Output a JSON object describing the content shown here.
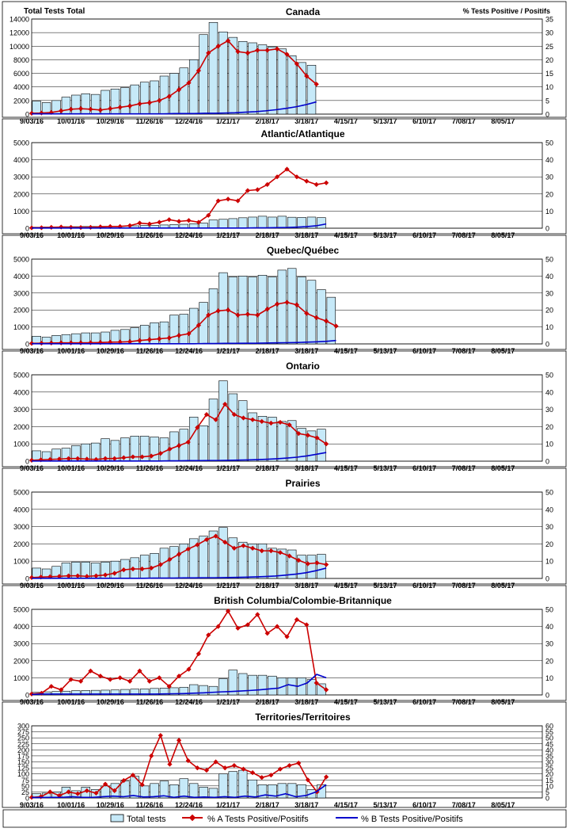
{
  "header": {
    "left_axis_title": "Total Tests Total",
    "right_axis_title": "% Tests Positive / Positifs"
  },
  "x_tick_labels": [
    "9/03/16",
    "10/01/16",
    "10/29/16",
    "11/26/16",
    "12/24/16",
    "1/21/17",
    "2/18/17",
    "3/18/17",
    "4/15/17",
    "5/13/17",
    "6/10/17",
    "7/08/17",
    "8/05/17"
  ],
  "legend": {
    "total": "Total tests",
    "pct_a": "% A Tests Positive/Positifs",
    "pct_b": "% B Tests Positive/Positifs"
  },
  "colors": {
    "bar_fill": "#c6e9f8",
    "bar_stroke": "#000000",
    "line_a": "#cc0000",
    "line_b": "#0000cc",
    "grid": "#000000"
  },
  "chart_data": [
    {
      "type": "bar",
      "title": "Canada",
      "ylim_left": [
        0,
        14000
      ],
      "yticks_left": [
        0,
        2000,
        4000,
        6000,
        8000,
        10000,
        12000,
        14000
      ],
      "ylim_right": [
        0,
        35
      ],
      "yticks_right": [
        0,
        5,
        10,
        15,
        20,
        25,
        30,
        35
      ],
      "x_weeks": 52,
      "series": [
        {
          "name": "Total tests",
          "values": [
            1900,
            1700,
            2000,
            2500,
            2800,
            3000,
            2900,
            3500,
            3700,
            3900,
            4300,
            4700,
            4900,
            5600,
            6000,
            6800,
            8000,
            11700,
            13500,
            12100,
            11300,
            10700,
            10500,
            10200,
            9900,
            9600,
            8600,
            7600,
            7200
          ]
        },
        {
          "name": "% A Tests Positive/Positifs",
          "values": [
            0.3,
            0.4,
            0.6,
            1.2,
            1.8,
            2.0,
            1.8,
            1.5,
            2.0,
            2.5,
            3.0,
            3.8,
            4.2,
            5.0,
            6.5,
            9.0,
            11.5,
            16.0,
            22.5,
            25.0,
            27.0,
            23.0,
            22.5,
            23.5,
            23.5,
            24.0,
            22.0,
            18.5,
            14.0,
            11.0
          ]
        },
        {
          "name": "% B Tests Positive/Positifs",
          "values": [
            0.1,
            0.1,
            0.1,
            0.1,
            0.1,
            0.1,
            0.1,
            0.1,
            0.1,
            0.1,
            0.1,
            0.1,
            0.1,
            0.1,
            0.2,
            0.2,
            0.2,
            0.3,
            0.3,
            0.4,
            0.5,
            0.7,
            0.9,
            1.2,
            1.6,
            2.1,
            2.7,
            3.5,
            4.5
          ]
        }
      ]
    },
    {
      "type": "bar",
      "title": "Atlantic/Atlantique",
      "ylim_left": [
        0,
        5000
      ],
      "yticks_left": [
        0,
        1000,
        2000,
        3000,
        4000,
        5000
      ],
      "ylim_right": [
        0,
        50
      ],
      "yticks_right": [
        0,
        10,
        20,
        30,
        40,
        50
      ],
      "x_weeks": 52,
      "series": [
        {
          "name": "Total tests",
          "values": [
            60,
            70,
            80,
            90,
            90,
            100,
            100,
            110,
            120,
            130,
            140,
            160,
            170,
            190,
            210,
            230,
            260,
            300,
            480,
            520,
            560,
            610,
            650,
            700,
            650,
            700,
            640,
            630,
            650,
            620
          ]
        },
        {
          "name": "% A Tests Positive/Positifs",
          "values": [
            0.2,
            0.3,
            0.5,
            0.7,
            0.5,
            0.4,
            0.5,
            0.8,
            1.0,
            1.0,
            1.5,
            3.0,
            2.5,
            3.5,
            5.0,
            4.0,
            4.5,
            3.5,
            7.5,
            16.0,
            17.0,
            16.0,
            22.0,
            22.5,
            25.5,
            30.0,
            34.5,
            30.0,
            27.5,
            25.5,
            26.5
          ]
        },
        {
          "name": "% B Tests Positive/Positifs",
          "values": [
            0.1,
            0.1,
            0.1,
            0.1,
            0.1,
            0.1,
            0.1,
            0.1,
            0.1,
            0.1,
            0.1,
            0.1,
            0.1,
            0.1,
            0.1,
            0.1,
            0.1,
            0.1,
            0.1,
            0.1,
            0.1,
            0.1,
            0.2,
            0.2,
            0.3,
            0.4,
            0.6,
            0.9,
            1.4,
            2.5
          ]
        }
      ]
    },
    {
      "type": "bar",
      "title": "Quebec/Québec",
      "ylim_left": [
        0,
        5000
      ],
      "yticks_left": [
        0,
        1000,
        2000,
        3000,
        4000,
        5000
      ],
      "ylim_right": [
        0,
        50
      ],
      "yticks_right": [
        0,
        10,
        20,
        30,
        40,
        50
      ],
      "x_weeks": 52,
      "series": [
        {
          "name": "Total tests",
          "values": [
            450,
            400,
            500,
            550,
            600,
            650,
            650,
            700,
            800,
            850,
            950,
            1100,
            1250,
            1300,
            1700,
            1750,
            2100,
            2450,
            3250,
            4200,
            3950,
            4000,
            3950,
            4050,
            3950,
            4350,
            4450,
            3950,
            3750,
            3200,
            2750
          ]
        },
        {
          "name": "% A Tests Positive/Positifs",
          "values": [
            0.3,
            0.4,
            0.5,
            0.6,
            0.6,
            0.6,
            0.7,
            0.8,
            1.0,
            1.1,
            1.3,
            2.0,
            2.5,
            3.0,
            3.5,
            5.0,
            6.0,
            11.0,
            17.0,
            19.5,
            20.0,
            17.0,
            17.5,
            17.0,
            20.5,
            23.5,
            24.5,
            23.0,
            18.0,
            15.5,
            13.5,
            10.5
          ]
        },
        {
          "name": "% B Tests Positive/Positifs",
          "values": [
            0.1,
            0.1,
            0.1,
            0.1,
            0.1,
            0.1,
            0.1,
            0.1,
            0.1,
            0.1,
            0.1,
            0.1,
            0.1,
            0.1,
            0.1,
            0.1,
            0.1,
            0.2,
            0.2,
            0.3,
            0.3,
            0.4,
            0.4,
            0.5,
            0.6,
            0.7,
            0.8,
            1.0,
            1.2,
            1.5,
            2.0
          ]
        }
      ]
    },
    {
      "type": "bar",
      "title": "Ontario",
      "ylim_left": [
        0,
        5000
      ],
      "yticks_left": [
        0,
        1000,
        2000,
        3000,
        4000,
        5000
      ],
      "ylim_right": [
        0,
        50
      ],
      "yticks_right": [
        0,
        10,
        20,
        30,
        40,
        50
      ],
      "x_weeks": 52,
      "series": [
        {
          "name": "Total tests",
          "values": [
            600,
            550,
            700,
            750,
            900,
            1000,
            1050,
            1300,
            1200,
            1350,
            1450,
            1450,
            1400,
            1350,
            1700,
            1850,
            2550,
            2050,
            3600,
            4650,
            3900,
            3500,
            2800,
            2600,
            2550,
            2300,
            2350,
            1900,
            1750,
            1850
          ]
        },
        {
          "name": "% A Tests Positive/Positifs",
          "values": [
            0.5,
            0.8,
            1.0,
            1.2,
            1.5,
            1.5,
            1.2,
            1.0,
            1.5,
            1.5,
            2.0,
            2.5,
            2.5,
            3.0,
            4.5,
            7.0,
            9.0,
            11.0,
            19.5,
            27.0,
            24.0,
            33.0,
            27.0,
            25.0,
            24.0,
            23.0,
            22.0,
            22.5,
            21.0,
            16.0,
            15.0,
            13.5,
            10.0
          ]
        },
        {
          "name": "% B Tests Positive/Positifs",
          "values": [
            0.1,
            0.1,
            0.1,
            0.1,
            0.1,
            0.1,
            0.1,
            0.1,
            0.1,
            0.1,
            0.1,
            0.1,
            0.1,
            0.1,
            0.2,
            0.2,
            0.3,
            0.3,
            0.4,
            0.4,
            0.5,
            0.6,
            0.7,
            0.9,
            1.1,
            1.4,
            1.8,
            2.3,
            3.0,
            4.0,
            5.0
          ]
        }
      ]
    },
    {
      "type": "bar",
      "title": "Prairies",
      "ylim_left": [
        0,
        5000
      ],
      "yticks_left": [
        0,
        1000,
        2000,
        3000,
        4000,
        5000
      ],
      "ylim_right": [
        0,
        50
      ],
      "yticks_right": [
        0,
        10,
        20,
        30,
        40,
        50
      ],
      "x_weeks": 52,
      "series": [
        {
          "name": "Total tests",
          "values": [
            600,
            550,
            700,
            900,
            950,
            950,
            900,
            950,
            1000,
            1100,
            1200,
            1350,
            1450,
            1750,
            1850,
            2000,
            2300,
            2450,
            2750,
            2950,
            2350,
            2100,
            2000,
            2000,
            1750,
            1700,
            1650,
            1350,
            1350,
            1400
          ]
        },
        {
          "name": "% A Tests Positive/Positifs",
          "values": [
            0.5,
            0.8,
            1.0,
            1.2,
            1.5,
            1.5,
            1.2,
            1.5,
            2.0,
            3.0,
            5.0,
            5.5,
            5.5,
            6.0,
            8.0,
            11.0,
            14.0,
            17.0,
            19.5,
            22.5,
            24.5,
            21.0,
            17.5,
            19.0,
            17.5,
            16.0,
            16.0,
            15.0,
            13.0,
            10.5,
            8.5,
            9.0,
            8.0
          ]
        },
        {
          "name": "% B Tests Positive/Positifs",
          "values": [
            0.1,
            0.1,
            0.1,
            0.1,
            0.1,
            0.1,
            0.1,
            0.1,
            0.1,
            0.1,
            0.1,
            0.1,
            0.2,
            0.2,
            0.2,
            0.3,
            0.3,
            0.4,
            0.4,
            0.5,
            0.6,
            0.7,
            0.9,
            1.1,
            1.4,
            1.9,
            2.5,
            3.3,
            4.5,
            6.0
          ]
        }
      ]
    },
    {
      "type": "bar",
      "title": "British Columbia/Colombie-Britannique",
      "ylim_left": [
        0,
        5000
      ],
      "yticks_left": [
        0,
        1000,
        2000,
        3000,
        4000,
        5000
      ],
      "ylim_right": [
        0,
        50
      ],
      "yticks_right": [
        0,
        10,
        20,
        30,
        40,
        50
      ],
      "x_weeks": 52,
      "series": [
        {
          "name": "Total tests",
          "values": [
            150,
            180,
            200,
            220,
            250,
            260,
            270,
            280,
            290,
            320,
            340,
            350,
            380,
            400,
            420,
            450,
            600,
            550,
            500,
            950,
            1450,
            1250,
            1150,
            1150,
            1100,
            1000,
            1000,
            1000,
            900,
            650
          ]
        },
        {
          "name": "% A Tests Positive/Positifs",
          "values": [
            0.5,
            1.0,
            5.0,
            3.0,
            9.0,
            8.0,
            14.0,
            11.0,
            9.0,
            10.0,
            8.0,
            14.0,
            8.0,
            10.0,
            5.0,
            11.0,
            15.0,
            24.0,
            35.0,
            40.0,
            49.0,
            39.0,
            41.0,
            47.0,
            36.0,
            40.0,
            34.0,
            44.0,
            41.0,
            7.0,
            3.0
          ]
        },
        {
          "name": "% B Tests Positive/Positifs",
          "values": [
            0.2,
            0.5,
            0.5,
            0.5,
            0.5,
            0.5,
            0.5,
            0.5,
            0.5,
            0.5,
            0.5,
            0.5,
            0.5,
            0.5,
            0.6,
            0.7,
            0.8,
            1.0,
            1.2,
            1.5,
            1.8,
            2.0,
            2.3,
            2.6,
            3.0,
            3.5,
            4.0,
            6.0,
            5.0,
            7.0,
            12.0,
            10.0
          ]
        }
      ]
    },
    {
      "type": "bar",
      "title": "Territories/Territoires",
      "ylim_left": [
        0,
        300
      ],
      "yticks_left": [
        0,
        25,
        50,
        75,
        100,
        125,
        150,
        175,
        200,
        225,
        250,
        275,
        300
      ],
      "ylim_right": [
        0,
        60
      ],
      "yticks_right": [
        0,
        5,
        10,
        15,
        20,
        25,
        30,
        35,
        40,
        45,
        50,
        55,
        60
      ],
      "x_weeks": 52,
      "series": [
        {
          "name": "Total tests",
          "values": [
            18,
            20,
            25,
            45,
            30,
            45,
            35,
            50,
            60,
            70,
            90,
            50,
            60,
            70,
            55,
            80,
            60,
            45,
            40,
            100,
            110,
            115,
            75,
            55,
            55,
            60,
            60,
            55,
            35,
            55
          ]
        },
        {
          "name": "% A Tests Positive/Positifs",
          "values": [
            0.5,
            1.0,
            5.0,
            2.0,
            5.0,
            3.5,
            6.0,
            4.0,
            11.5,
            6.0,
            14.5,
            19.0,
            11.0,
            35.0,
            52.0,
            28.0,
            48.0,
            31.0,
            25.0,
            23.0,
            30.0,
            25.0,
            27.0,
            24.0,
            21.0,
            17.0,
            19.0,
            24.0,
            27.0,
            29.0,
            15.0,
            5.0,
            17.5
          ]
        },
        {
          "name": "% B Tests Positive/Positifs",
          "values": [
            0.3,
            0.4,
            0.5,
            0.5,
            1.0,
            0.5,
            0.5,
            1.0,
            1.5,
            1.0,
            2.0,
            0.8,
            1.0,
            1.8,
            0.5,
            1.5,
            0.5,
            0.8,
            0.5,
            1.0,
            0.5,
            1.5,
            0.8,
            2.5,
            1.5,
            3.5,
            1.0,
            2.0,
            5.0,
            11.0
          ]
        }
      ]
    }
  ]
}
